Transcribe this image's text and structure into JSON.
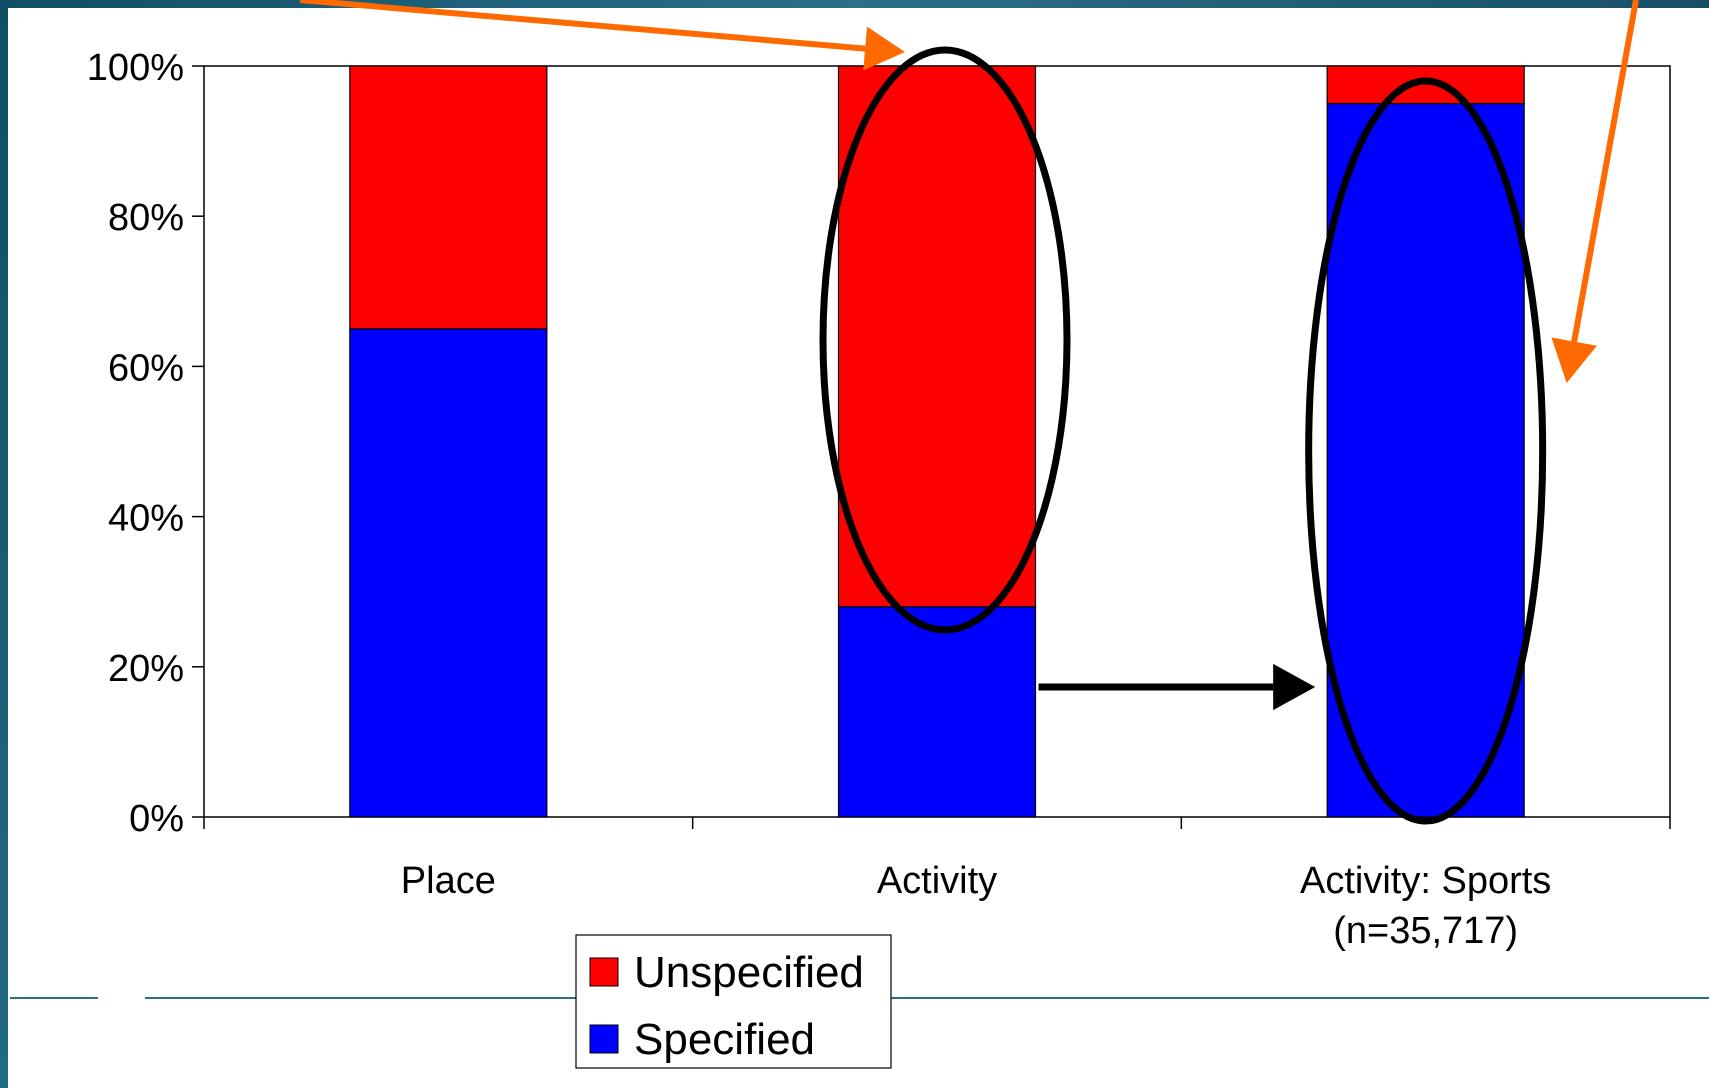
{
  "chart_data": {
    "type": "bar",
    "stacked": true,
    "categories": [
      "Place",
      "Activity",
      "Activity: Sports\n(n=35,717)"
    ],
    "series": [
      {
        "name": "Specified",
        "values": [
          65,
          28,
          95
        ],
        "color": "#0000ff"
      },
      {
        "name": "Unspecified",
        "values": [
          35,
          72,
          5
        ],
        "color": "#ff0000"
      }
    ],
    "ylim": [
      0,
      100
    ],
    "y_ticks": [
      "0%",
      "20%",
      "40%",
      "60%",
      "80%",
      "100%"
    ],
    "y_tick_values": [
      0,
      20,
      40,
      60,
      80,
      100
    ],
    "legend": {
      "placement": "bottom",
      "entries": [
        "Unspecified",
        "Specified"
      ]
    },
    "annotations": [
      {
        "kind": "ellipse",
        "target": "Activity",
        "color": "#000000"
      },
      {
        "kind": "ellipse",
        "target": "Activity: Sports\n(n=35,717)",
        "color": "#000000"
      },
      {
        "kind": "arrow",
        "from": "Activity",
        "to": "Activity: Sports\n(n=35,717)",
        "color": "#000000"
      },
      {
        "kind": "arrow",
        "target": "Activity",
        "color": "#ff6a00",
        "origin": "top-left"
      },
      {
        "kind": "arrow",
        "target": "Activity: Sports\n(n=35,717)",
        "color": "#ff6a00",
        "origin": "top-right"
      }
    ]
  },
  "colors": {
    "frame_teal": "#1a5f74",
    "rule": "#2d6f87",
    "axis": "#000000"
  }
}
